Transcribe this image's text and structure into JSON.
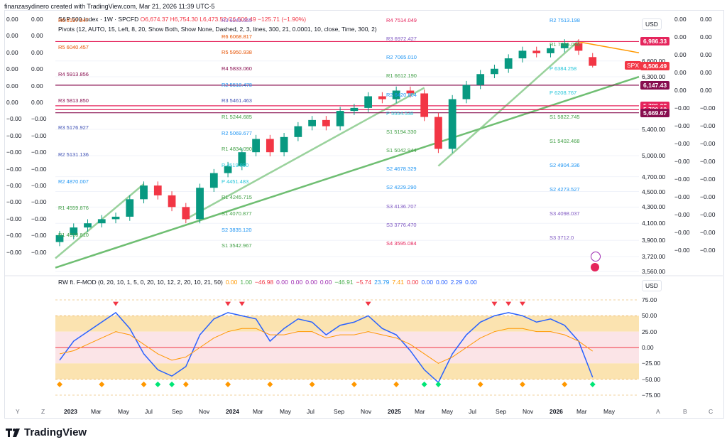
{
  "header": {
    "text": "finanzasydinero created with TradingView.com, Mar 21, 2026 11:39 UTC-5"
  },
  "legend": {
    "symbol": "S&P 500 Index · 1W · SPCFD",
    "ohlc": "O6,674.37  H6,754.30  L6,473.52  C6,506.49  −125.71 (−1.90%)",
    "pivots": "Pivots (12, AUTO, 15, Left, 8, 20, Show Both, Show None, Dashed, 2, 3, lines, 300, 21, 0.0001, 10, close, Time, 300, 2)",
    "oscillator": [
      "RW ft. F-MOD (0, 20, 10, 1, 5, 0, 20, 10, 12, 2, 20, 10, 21, 50)",
      "0.00",
      "1.00",
      "−46.98",
      "0.00",
      "0.00",
      "0.00",
      "0.00",
      "−46.91",
      "−5.74",
      "23.79",
      "7.41",
      "0.00",
      "0.00",
      "0.00",
      "2.29",
      "0.00"
    ]
  },
  "price_axis": {
    "currency": "USD",
    "ticks": [
      {
        "label": "6,600.00",
        "v": 6600
      },
      {
        "label": "6,300.00",
        "v": 6300
      },
      {
        "label": "5,400.00",
        "v": 5400
      },
      {
        "label": "5,000.00",
        "v": 5000
      },
      {
        "label": "4,700.00",
        "v": 4700
      },
      {
        "label": "4,500.00",
        "v": 4500
      },
      {
        "label": "4,300.00",
        "v": 4300
      },
      {
        "label": "4,100.00",
        "v": 4100
      },
      {
        "label": "3,900.00",
        "v": 3900
      },
      {
        "label": "3,720.00",
        "v": 3720
      },
      {
        "label": "3,560.00",
        "v": 3560
      }
    ],
    "tags": [
      {
        "label": "6,986.33",
        "color": "#e5255c",
        "v": 6986
      },
      {
        "label": "6,506.49",
        "color": "#f23645",
        "v": 6506
      },
      {
        "label": "6,147.43",
        "color": "#880e4f",
        "v": 6147
      },
      {
        "label": "5,786.08",
        "color": "#e5255c",
        "v": 5786
      },
      {
        "label": "5,720.10",
        "color": "#e5255c",
        "v": 5720
      },
      {
        "label": "5,669.67",
        "color": "#880e4f",
        "v": 5669
      }
    ],
    "spx_label": "SPX"
  },
  "osc_axis": {
    "currency": "USD",
    "ticks": [
      "75.00",
      "50.00",
      "25.00",
      "0.00",
      "−25.00",
      "−50.00",
      "−75.00"
    ]
  },
  "far_axis_a": [
    "0.00",
    "0.00",
    "0.00",
    "0.00",
    "0.00",
    "−0.00",
    "−0.00",
    "−0.00",
    "−0.00",
    "−0.00",
    "−0.00",
    "−0.00",
    "−0.00",
    "−0.00"
  ],
  "far_axis_b": [
    "0.00",
    "0.00",
    "0.00",
    "0.00",
    "0.00",
    "−0.00",
    "−0.00",
    "−0.00",
    "−0.00",
    "−0.00",
    "−0.00",
    "−0.00",
    "−0.00",
    "−0.00"
  ],
  "left_col_a": [
    "0.00",
    "0.00",
    "0.00",
    "0.00",
    "0.00",
    "0.00",
    "−0.00",
    "−0.00",
    "−0.00",
    "−0.00",
    "−0.00",
    "−0.00",
    "−0.00",
    "−0.00",
    "−0.00"
  ],
  "left_col_b": [
    "0.00",
    "0.00",
    "0.00",
    "0.00",
    "0.00",
    "0.00",
    "−0.00",
    "−0.00",
    "−0.00",
    "−0.00",
    "−0.00",
    "−0.00",
    "−0.00",
    "−0.00",
    "−0.00"
  ],
  "time_axis": [
    {
      "label": "2023",
      "bold": true
    },
    {
      "label": "Mar"
    },
    {
      "label": "May"
    },
    {
      "label": "Jul"
    },
    {
      "label": "Sep"
    },
    {
      "label": "Nov"
    },
    {
      "label": "2024",
      "bold": true
    },
    {
      "label": "Mar"
    },
    {
      "label": "May"
    },
    {
      "label": "Jul"
    },
    {
      "label": "Sep"
    },
    {
      "label": "Nov"
    },
    {
      "label": "2025",
      "bold": true
    },
    {
      "label": "Mar"
    },
    {
      "label": "May"
    },
    {
      "label": "Jul"
    },
    {
      "label": "Sep"
    },
    {
      "label": "Nov"
    },
    {
      "label": "2026",
      "bold": true
    },
    {
      "label": "Mar"
    },
    {
      "label": "May"
    }
  ],
  "corner_letters": [
    "Y",
    "Z",
    "A",
    "B",
    "C"
  ],
  "pivot_labels": [
    {
      "text": "R6  6197.047",
      "c": "#e65100"
    },
    {
      "text": "R5  6040.457",
      "c": "#e65100"
    },
    {
      "text": "R4  5913.856",
      "c": "#880e4f"
    },
    {
      "text": "R3  5813.850",
      "c": "#880e4f"
    },
    {
      "text": "R3  5176.927",
      "c": "#3f51b5"
    },
    {
      "text": "R2  5131.136",
      "c": "#3f51b5"
    },
    {
      "text": "R2  4870.007",
      "c": "#2196f3"
    },
    {
      "text": "R1  4559.876",
      "c": "#43a047"
    },
    {
      "text": "R1  4516.810",
      "c": "#43a047"
    },
    {
      "text": "R3  6243.655",
      "c": "#7e57c2"
    },
    {
      "text": "R6  6068.817",
      "c": "#e65100"
    },
    {
      "text": "R5  5950.938",
      "c": "#e65100"
    },
    {
      "text": "R4  5833.060",
      "c": "#880e4f"
    },
    {
      "text": "R2  5518.478",
      "c": "#2196f3"
    },
    {
      "text": "R3  5461.463",
      "c": "#3f51b5"
    },
    {
      "text": "R1  5244.685",
      "c": "#43a047"
    },
    {
      "text": "R2  5069.677",
      "c": "#2196f3"
    },
    {
      "text": "R1  4834.090",
      "c": "#43a047"
    },
    {
      "text": "P  4519.890",
      "c": "#26c6da"
    },
    {
      "text": "P  4451.483",
      "c": "#26c6da"
    },
    {
      "text": "R1  4245.715",
      "c": "#43a047"
    },
    {
      "text": "S1  4070.877",
      "c": "#43a047"
    },
    {
      "text": "S2  3835.120",
      "c": "#2196f3"
    },
    {
      "text": "S1  3542.967",
      "c": "#43a047"
    },
    {
      "text": "R4  7514.049",
      "c": "#e5255c"
    },
    {
      "text": "R3  6972.427",
      "c": "#7e57c2"
    },
    {
      "text": "R2  7065.010",
      "c": "#2196f3"
    },
    {
      "text": "R1  6612.190",
      "c": "#43a047"
    },
    {
      "text": "R2  6420.804",
      "c": "#2196f3"
    },
    {
      "text": "P  5554.538",
      "c": "#26c6da"
    },
    {
      "text": "S1  5194.330",
      "c": "#43a047"
    },
    {
      "text": "S1  5042.944",
      "c": "#43a047"
    },
    {
      "text": "S2  4678.329",
      "c": "#2196f3"
    },
    {
      "text": "S2  4229.290",
      "c": "#2196f3"
    },
    {
      "text": "S3  4136.707",
      "c": "#7e57c2"
    },
    {
      "text": "S3  3776.470",
      "c": "#7e57c2"
    },
    {
      "text": "S4  3595.084",
      "c": "#e5255c"
    },
    {
      "text": "R2  7513.198",
      "c": "#2196f3"
    },
    {
      "text": "R1  7015.066",
      "c": "#43a047"
    },
    {
      "text": "P  6384.258",
      "c": "#26c6da"
    },
    {
      "text": "P  6208.767",
      "c": "#26c6da"
    },
    {
      "text": "S1  5822.745",
      "c": "#43a047"
    },
    {
      "text": "S1  5402.468",
      "c": "#43a047"
    },
    {
      "text": "S2  4904.336",
      "c": "#2196f3"
    },
    {
      "text": "S2  4273.527",
      "c": "#2196f3"
    },
    {
      "text": "S3  4098.037",
      "c": "#7e57c2"
    },
    {
      "text": "S3  3712.0",
      "c": "#7e57c2"
    }
  ],
  "colors": {
    "up": "#089981",
    "down": "#f23645",
    "trend": "#4caf50",
    "bg": "#ffffff"
  },
  "chart_data": {
    "type": "candlestick",
    "title": "S&P 500 Index · 1W · SPCFD",
    "ylabel": "USD",
    "ylim": [
      3560,
      7600
    ],
    "x": [
      "2023-01",
      "2023-02",
      "2023-03",
      "2023-04",
      "2023-05",
      "2023-06",
      "2023-07",
      "2023-08",
      "2023-09",
      "2023-10",
      "2023-11",
      "2023-12",
      "2024-01",
      "2024-02",
      "2024-03",
      "2024-04",
      "2024-05",
      "2024-06",
      "2024-07",
      "2024-08",
      "2024-09",
      "2024-10",
      "2024-11",
      "2024-12",
      "2025-01",
      "2025-02",
      "2025-03",
      "2025-04",
      "2025-05",
      "2025-06",
      "2025-07",
      "2025-08",
      "2025-09",
      "2025-10",
      "2025-11",
      "2025-12",
      "2026-01",
      "2026-02",
      "2026-03"
    ],
    "close": [
      3960,
      4050,
      4100,
      4150,
      4180,
      4400,
      4580,
      4450,
      4300,
      4150,
      4550,
      4750,
      4850,
      5050,
      5250,
      5050,
      5280,
      5450,
      5550,
      5450,
      5700,
      5750,
      5950,
      5900,
      6050,
      6000,
      5600,
      5100,
      5900,
      6150,
      6350,
      6450,
      6650,
      6800,
      6750,
      6850,
      6950,
      6800,
      6506
    ],
    "last": {
      "open": 6674.37,
      "high": 6754.3,
      "low": 6473.52,
      "close": 6506.49,
      "change": -125.71,
      "change_pct": -1.9
    },
    "oscillator": {
      "ylim": [
        -75,
        75
      ],
      "ticks": [
        75,
        50,
        25,
        0,
        -25,
        -50,
        -75
      ],
      "series": [
        {
          "values": [
            -20,
            10,
            25,
            40,
            55,
            30,
            -10,
            -35,
            -45,
            -30,
            20,
            45,
            55,
            50,
            45,
            10,
            30,
            45,
            40,
            20,
            35,
            40,
            50,
            30,
            20,
            -5,
            -35,
            -55,
            -10,
            20,
            40,
            50,
            55,
            50,
            40,
            45,
            35,
            10,
            -46.91
          ]
        },
        {
          "values": [
            -10,
            -5,
            5,
            15,
            25,
            20,
            5,
            -10,
            -20,
            -15,
            0,
            15,
            25,
            30,
            30,
            20,
            20,
            25,
            25,
            15,
            20,
            20,
            25,
            20,
            15,
            5,
            -10,
            -25,
            -15,
            0,
            15,
            25,
            30,
            30,
            25,
            25,
            20,
            10,
            -5.74
          ]
        }
      ]
    }
  }
}
